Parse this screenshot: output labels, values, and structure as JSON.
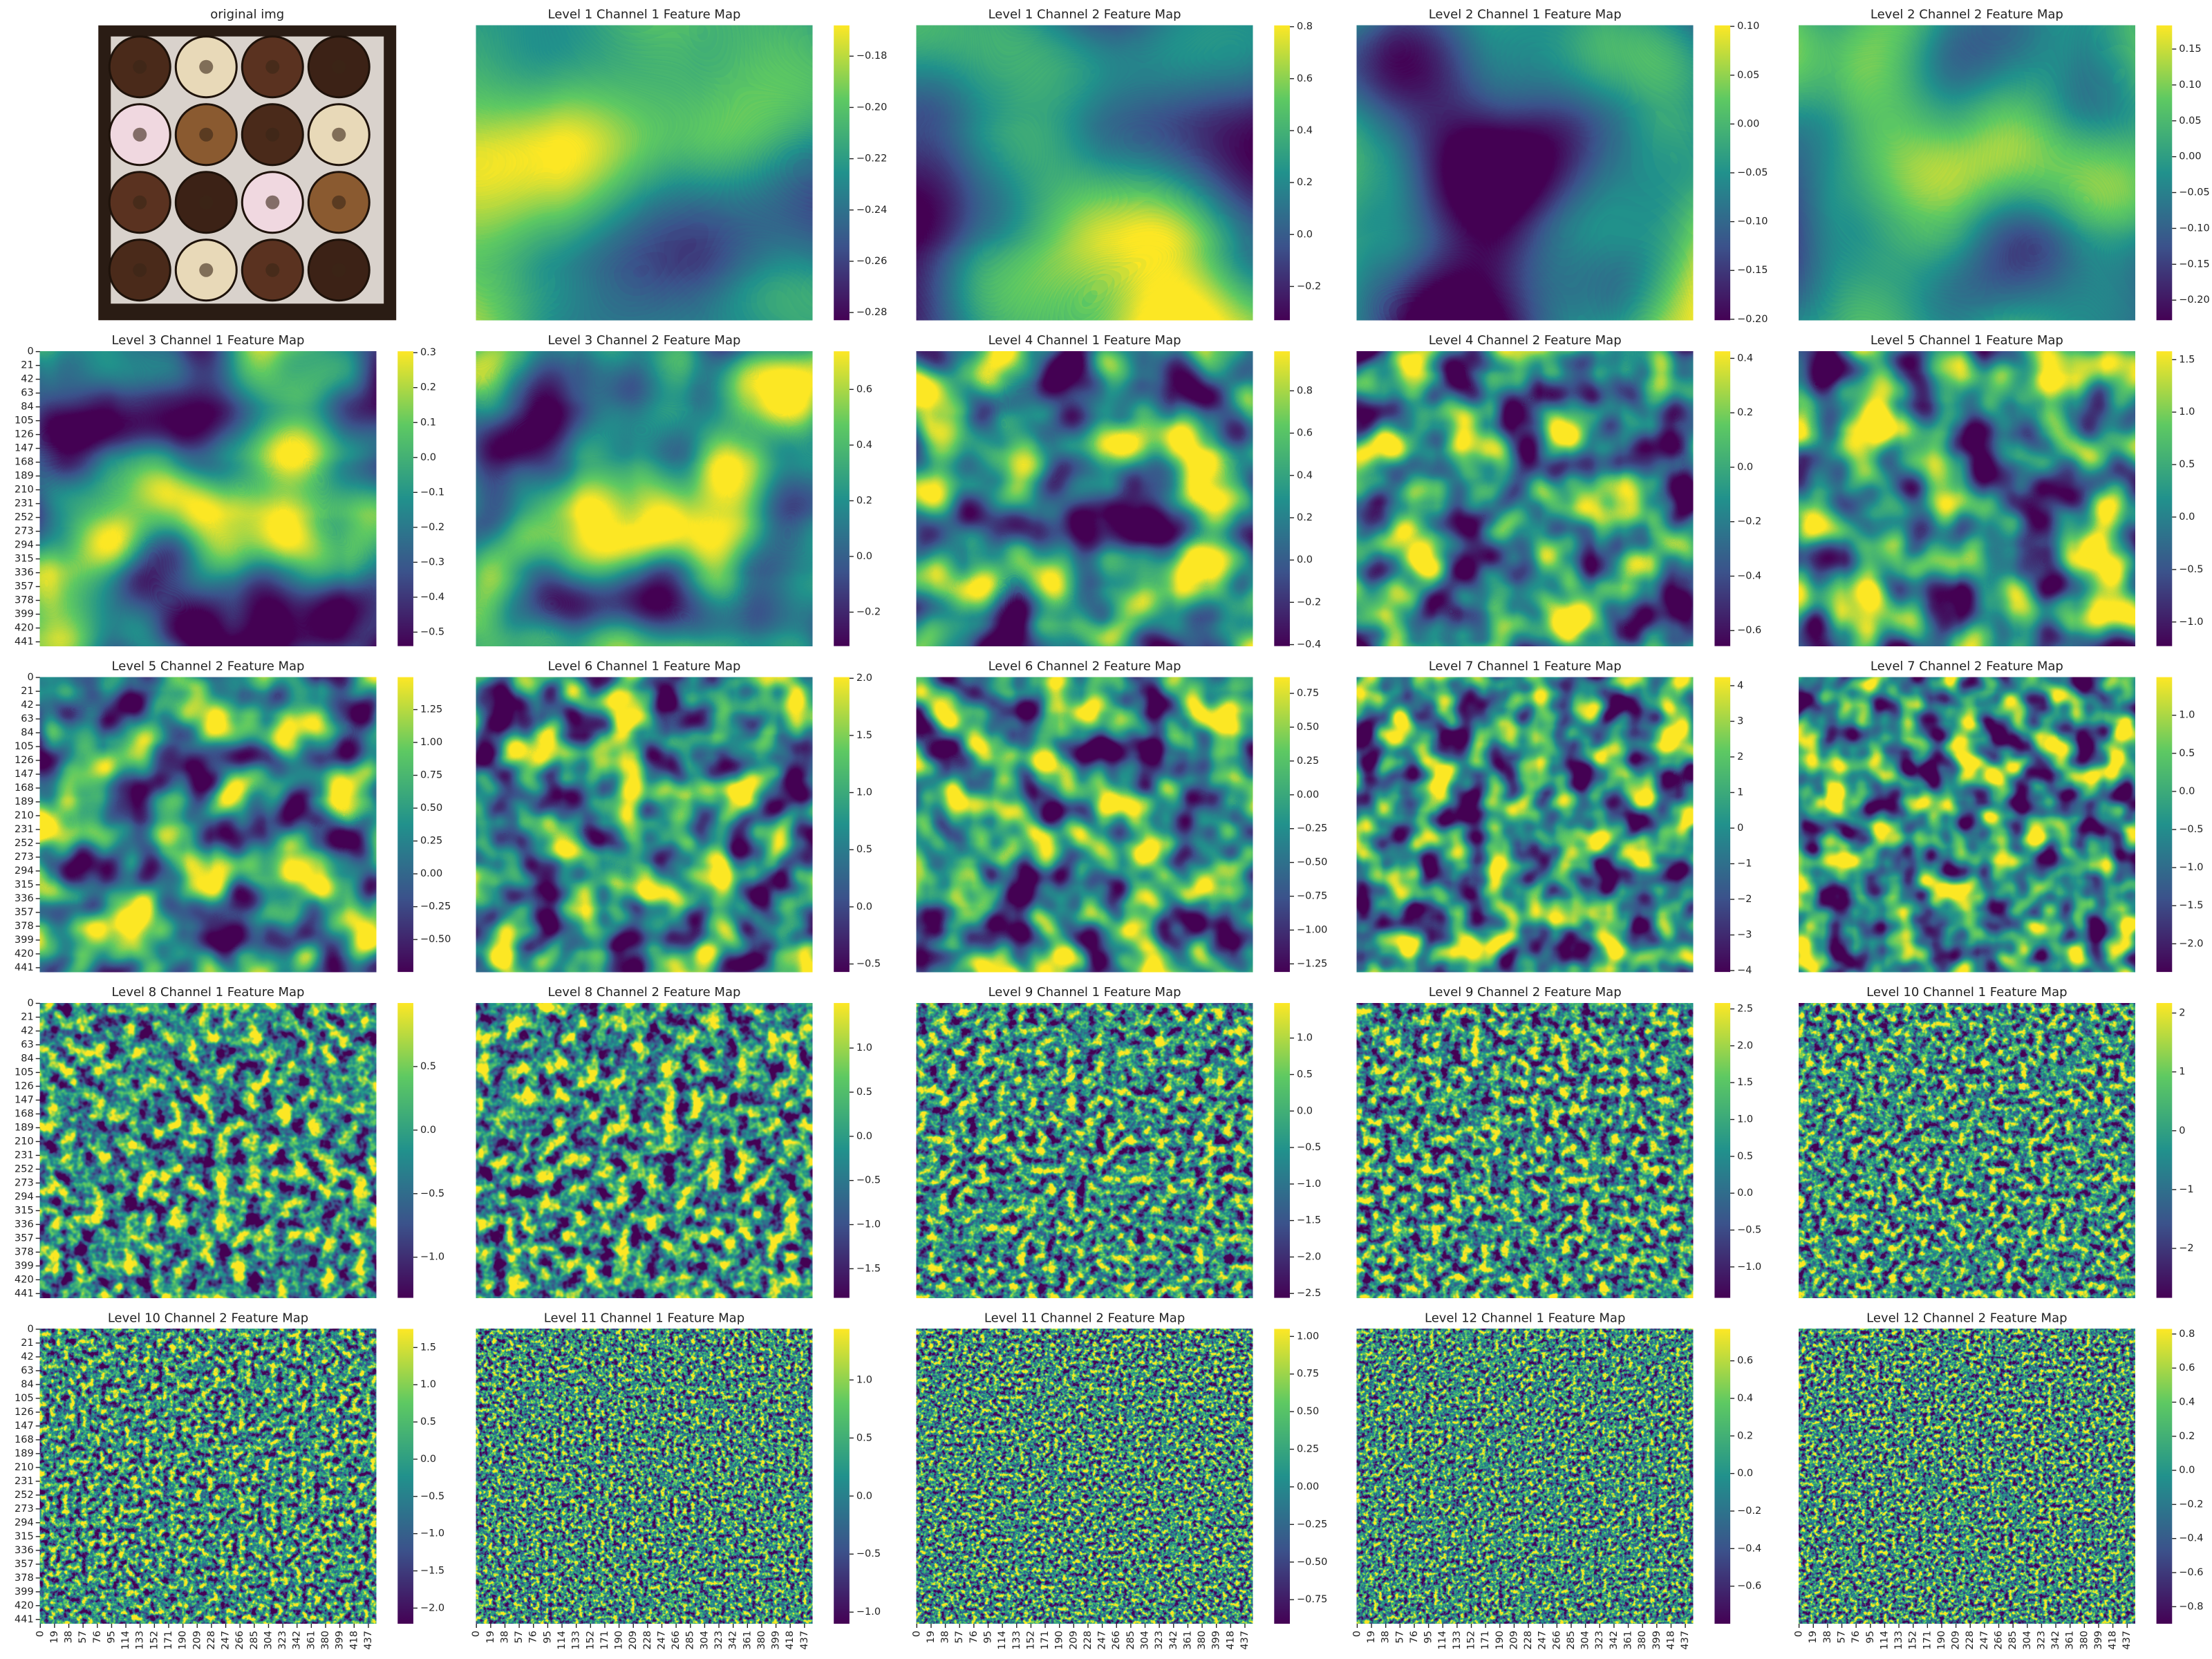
{
  "chart_data": [
    {
      "type": "image",
      "title": "original img"
    },
    {
      "type": "heatmap",
      "title": "Level 1 Channel 1 Feature Map",
      "clim": [
        -0.283,
        -0.168
      ],
      "cticks": [
        {
          "value": -0.18,
          "label": "−0.18"
        },
        {
          "value": -0.2,
          "label": "−0.20"
        },
        {
          "value": -0.22,
          "label": "−0.22"
        },
        {
          "value": -0.24,
          "label": "−0.24"
        },
        {
          "value": -0.26,
          "label": "−0.26"
        },
        {
          "value": -0.28,
          "label": "−0.28"
        }
      ]
    },
    {
      "type": "heatmap",
      "title": "Level 1 Channel 2 Feature Map",
      "clim": [
        -0.33,
        0.805
      ],
      "cticks": [
        0.8,
        0.6,
        0.4,
        0.2,
        {
          "value": 0,
          "label": "0.0"
        },
        {
          "value": -0.2,
          "label": "−0.2"
        }
      ]
    },
    {
      "type": "heatmap",
      "title": "Level 2 Channel 1 Feature Map",
      "clim": [
        -0.201,
        0.101
      ],
      "cticks": [
        {
          "value": 0.1,
          "label": "0.10"
        },
        0.05,
        {
          "value": 0,
          "label": "0.00"
        },
        {
          "value": -0.05,
          "label": "−0.05"
        },
        {
          "value": -0.1,
          "label": "−0.10"
        },
        {
          "value": -0.15,
          "label": "−0.15"
        },
        {
          "value": -0.2,
          "label": "−0.20"
        }
      ]
    },
    {
      "type": "heatmap",
      "title": "Level 2 Channel 2 Feature Map",
      "clim": [
        -0.228,
        0.183
      ],
      "cticks": [
        0.15,
        {
          "value": 0.1,
          "label": "0.10"
        },
        0.05,
        {
          "value": 0,
          "label": "0.00"
        },
        {
          "value": -0.05,
          "label": "−0.05"
        },
        {
          "value": -0.1,
          "label": "−0.10"
        },
        {
          "value": -0.15,
          "label": "−0.15"
        },
        {
          "value": -0.2,
          "label": "−0.20"
        }
      ]
    },
    {
      "type": "heatmap",
      "title": "Level 3 Channel 1 Feature Map",
      "clim": [
        -0.54,
        0.304
      ],
      "cticks": [
        0.3,
        0.2,
        0.1,
        {
          "value": 0,
          "label": "0.0"
        },
        {
          "value": -0.1,
          "label": "−0.1"
        },
        {
          "value": -0.2,
          "label": "−0.2"
        },
        {
          "value": -0.3,
          "label": "−0.3"
        },
        {
          "value": -0.4,
          "label": "−0.4"
        },
        {
          "value": -0.5,
          "label": "−0.5"
        }
      ],
      "ylim": [
        0,
        448
      ],
      "yticks": [
        0,
        21,
        42,
        63,
        84,
        105,
        126,
        147,
        168,
        189,
        210,
        231,
        252,
        273,
        294,
        315,
        336,
        357,
        378,
        399,
        420,
        441
      ]
    },
    {
      "type": "heatmap",
      "title": "Level 3 Channel 2 Feature Map",
      "clim": [
        -0.322,
        0.737
      ],
      "cticks": [
        0.6,
        0.4,
        0.2,
        {
          "value": 0,
          "label": "0.0"
        },
        {
          "value": -0.2,
          "label": "−0.2"
        }
      ]
    },
    {
      "type": "heatmap",
      "title": "Level 4 Channel 1 Feature Map",
      "clim": [
        -0.407,
        0.987
      ],
      "cticks": [
        0.8,
        0.6,
        0.4,
        0.2,
        {
          "value": 0,
          "label": "0.0"
        },
        {
          "value": -0.2,
          "label": "−0.2"
        },
        {
          "value": -0.4,
          "label": "−0.4"
        }
      ]
    },
    {
      "type": "heatmap",
      "title": "Level 4 Channel 2 Feature Map",
      "clim": [
        -0.657,
        0.426
      ],
      "cticks": [
        0.4,
        0.2,
        {
          "value": 0,
          "label": "0.0"
        },
        {
          "value": -0.2,
          "label": "−0.2"
        },
        {
          "value": -0.4,
          "label": "−0.4"
        },
        {
          "value": -0.6,
          "label": "−0.6"
        }
      ]
    },
    {
      "type": "heatmap",
      "title": "Level 5 Channel 1 Feature Map",
      "clim": [
        -1.23,
        1.58
      ],
      "cticks": [
        1.5,
        {
          "value": 1,
          "label": "1.0"
        },
        0.5,
        {
          "value": 0,
          "label": "0.0"
        },
        {
          "value": -0.5,
          "label": "−0.5"
        },
        {
          "value": -1,
          "label": "−1.0"
        }
      ]
    },
    {
      "type": "heatmap",
      "title": "Level 5 Channel 2 Feature Map",
      "clim": [
        -0.747,
        1.497
      ],
      "cticks": [
        1.25,
        {
          "value": 1,
          "label": "1.00"
        },
        0.75,
        {
          "value": 0.5,
          "label": "0.50"
        },
        0.25,
        {
          "value": 0,
          "label": "0.00"
        },
        {
          "value": -0.25,
          "label": "−0.25"
        },
        {
          "value": -0.5,
          "label": "−0.50"
        }
      ],
      "ylim": [
        0,
        448
      ],
      "yticks": [
        0,
        21,
        42,
        63,
        84,
        105,
        126,
        147,
        168,
        189,
        210,
        231,
        252,
        273,
        294,
        315,
        336,
        357,
        378,
        399,
        420,
        441
      ]
    },
    {
      "type": "heatmap",
      "title": "Level 6 Channel 1 Feature Map",
      "clim": [
        -0.57,
        2.01
      ],
      "cticks": [
        {
          "value": 2,
          "label": "2.0"
        },
        1.5,
        {
          "value": 1,
          "label": "1.0"
        },
        0.5,
        {
          "value": 0,
          "label": "0.0"
        },
        {
          "value": -0.5,
          "label": "−0.5"
        }
      ]
    },
    {
      "type": "heatmap",
      "title": "Level 6 Channel 2 Feature Map",
      "clim": [
        -1.31,
        0.87
      ],
      "cticks": [
        0.75,
        {
          "value": 0.5,
          "label": "0.50"
        },
        0.25,
        {
          "value": 0,
          "label": "0.00"
        },
        {
          "value": -0.25,
          "label": "−0.25"
        },
        {
          "value": -0.5,
          "label": "−0.50"
        },
        {
          "value": -0.75,
          "label": "−0.75"
        },
        {
          "value": -1,
          "label": "−1.00"
        },
        {
          "value": -1.25,
          "label": "−1.25"
        }
      ]
    },
    {
      "type": "heatmap",
      "title": "Level 7 Channel 1 Feature Map",
      "clim": [
        -4.04,
        4.24
      ],
      "cticks": [
        4,
        3,
        2,
        1,
        0,
        {
          "value": -1,
          "label": "−1"
        },
        {
          "value": -2,
          "label": "−2"
        },
        {
          "value": -3,
          "label": "−3"
        },
        {
          "value": -4,
          "label": "−4"
        }
      ]
    },
    {
      "type": "heatmap",
      "title": "Level 7 Channel 2 Feature Map",
      "clim": [
        -2.37,
        1.5
      ],
      "cticks": [
        {
          "value": 1,
          "label": "1.0"
        },
        0.5,
        {
          "value": 0,
          "label": "0.0"
        },
        {
          "value": -0.5,
          "label": "−0.5"
        },
        {
          "value": -1,
          "label": "−1.0"
        },
        {
          "value": -1.5,
          "label": "−1.5"
        },
        {
          "value": -2,
          "label": "−2.0"
        }
      ]
    },
    {
      "type": "heatmap",
      "title": "Level 8 Channel 1 Feature Map",
      "clim": [
        -1.32,
        1.0
      ],
      "cticks": [
        0.5,
        {
          "value": 0,
          "label": "0.0"
        },
        {
          "value": -0.5,
          "label": "−0.5"
        },
        {
          "value": -1,
          "label": "−1.0"
        }
      ],
      "ylim": [
        0,
        448
      ],
      "yticks": [
        0,
        21,
        42,
        63,
        84,
        105,
        126,
        147,
        168,
        189,
        210,
        231,
        252,
        273,
        294,
        315,
        336,
        357,
        378,
        399,
        420,
        441
      ]
    },
    {
      "type": "heatmap",
      "title": "Level 8 Channel 2 Feature Map",
      "clim": [
        -1.83,
        1.51
      ],
      "cticks": [
        {
          "value": 1,
          "label": "1.0"
        },
        0.5,
        {
          "value": 0,
          "label": "0.0"
        },
        {
          "value": -0.5,
          "label": "−0.5"
        },
        {
          "value": -1,
          "label": "−1.0"
        },
        {
          "value": -1.5,
          "label": "−1.5"
        }
      ]
    },
    {
      "type": "heatmap",
      "title": "Level 9 Channel 1 Feature Map",
      "clim": [
        -2.56,
        1.48
      ],
      "cticks": [
        {
          "value": 1,
          "label": "1.0"
        },
        0.5,
        {
          "value": 0,
          "label": "0.0"
        },
        {
          "value": -0.5,
          "label": "−0.5"
        },
        {
          "value": -1,
          "label": "−1.0"
        },
        {
          "value": -1.5,
          "label": "−1.5"
        },
        {
          "value": -2,
          "label": "−2.0"
        },
        {
          "value": -2.5,
          "label": "−2.5"
        }
      ]
    },
    {
      "type": "heatmap",
      "title": "Level 9 Channel 2 Feature Map",
      "clim": [
        -1.42,
        2.58
      ],
      "cticks": [
        2.5,
        {
          "value": 2,
          "label": "2.0"
        },
        1.5,
        {
          "value": 1,
          "label": "1.0"
        },
        0.5,
        {
          "value": 0,
          "label": "0.0"
        },
        {
          "value": -0.5,
          "label": "−0.5"
        },
        {
          "value": -1,
          "label": "−1.0"
        }
      ]
    },
    {
      "type": "heatmap",
      "title": "Level 10 Channel 1 Feature Map",
      "clim": [
        -2.84,
        2.17
      ],
      "cticks": [
        2,
        1,
        0,
        {
          "value": -1,
          "label": "−1"
        },
        {
          "value": -2,
          "label": "−2"
        }
      ]
    },
    {
      "type": "heatmap",
      "title": "Level 10 Channel 2 Feature Map",
      "clim": [
        -2.21,
        1.75
      ],
      "cticks": [
        1.5,
        {
          "value": 1,
          "label": "1.0"
        },
        0.5,
        {
          "value": 0,
          "label": "0.0"
        },
        {
          "value": -0.5,
          "label": "−0.5"
        },
        {
          "value": -1,
          "label": "−1.0"
        },
        {
          "value": -1.5,
          "label": "−1.5"
        },
        {
          "value": -2,
          "label": "−2.0"
        }
      ],
      "ylim": [
        0,
        448
      ],
      "yticks": [
        0,
        21,
        42,
        63,
        84,
        105,
        126,
        147,
        168,
        189,
        210,
        231,
        252,
        273,
        294,
        315,
        336,
        357,
        378,
        399,
        420,
        441
      ],
      "xlim": [
        0,
        448
      ],
      "xticks": [
        0,
        19,
        38,
        57,
        76,
        95,
        114,
        133,
        152,
        171,
        190,
        209,
        228,
        247,
        266,
        285,
        304,
        323,
        342,
        361,
        380,
        399,
        418,
        437
      ]
    },
    {
      "type": "heatmap",
      "title": "Level 11 Channel 1 Feature Map",
      "clim": [
        -1.1,
        1.44
      ],
      "cticks": [
        {
          "value": 1,
          "label": "1.0"
        },
        0.5,
        {
          "value": 0,
          "label": "0.0"
        },
        {
          "value": -0.5,
          "label": "−0.5"
        },
        {
          "value": -1,
          "label": "−1.0"
        }
      ],
      "xlim": [
        0,
        448
      ],
      "xticks": [
        0,
        19,
        38,
        57,
        76,
        95,
        114,
        133,
        152,
        171,
        190,
        209,
        228,
        247,
        266,
        285,
        304,
        323,
        342,
        361,
        380,
        399,
        418,
        437
      ]
    },
    {
      "type": "heatmap",
      "title": "Level 11 Channel 2 Feature Map",
      "clim": [
        -0.91,
        1.05
      ],
      "cticks": [
        {
          "value": 1,
          "label": "1.00"
        },
        0.75,
        {
          "value": 0.5,
          "label": "0.50"
        },
        0.25,
        {
          "value": 0,
          "label": "0.00"
        },
        {
          "value": -0.25,
          "label": "−0.25"
        },
        {
          "value": -0.5,
          "label": "−0.50"
        },
        {
          "value": -0.75,
          "label": "−0.75"
        }
      ],
      "xlim": [
        0,
        448
      ],
      "xticks": [
        0,
        19,
        38,
        57,
        76,
        95,
        114,
        133,
        152,
        171,
        190,
        209,
        228,
        247,
        266,
        285,
        304,
        323,
        342,
        361,
        380,
        399,
        418,
        437
      ]
    },
    {
      "type": "heatmap",
      "title": "Level 12 Channel 1 Feature Map",
      "clim": [
        -0.8,
        0.77
      ],
      "cticks": [
        0.6,
        0.4,
        0.2,
        {
          "value": 0,
          "label": "0.0"
        },
        {
          "value": -0.2,
          "label": "−0.2"
        },
        {
          "value": -0.4,
          "label": "−0.4"
        },
        {
          "value": -0.6,
          "label": "−0.6"
        }
      ],
      "xlim": [
        0,
        448
      ],
      "xticks": [
        0,
        19,
        38,
        57,
        76,
        95,
        114,
        133,
        152,
        171,
        190,
        209,
        228,
        247,
        266,
        285,
        304,
        323,
        342,
        361,
        380,
        399,
        418,
        437
      ]
    },
    {
      "type": "heatmap",
      "title": "Level 12 Channel 2 Feature Map",
      "clim": [
        -0.9,
        0.83
      ],
      "cticks": [
        0.8,
        0.6,
        0.4,
        0.2,
        {
          "value": 0,
          "label": "0.0"
        },
        {
          "value": -0.2,
          "label": "−0.2"
        },
        {
          "value": -0.4,
          "label": "−0.4"
        },
        {
          "value": -0.6,
          "label": "−0.6"
        },
        {
          "value": -0.8,
          "label": "−0.8"
        }
      ],
      "xlim": [
        0,
        448
      ],
      "xticks": [
        0,
        19,
        38,
        57,
        76,
        95,
        114,
        133,
        152,
        171,
        190,
        209,
        228,
        247,
        266,
        285,
        304,
        323,
        342,
        361,
        380,
        399,
        418,
        437
      ]
    }
  ]
}
